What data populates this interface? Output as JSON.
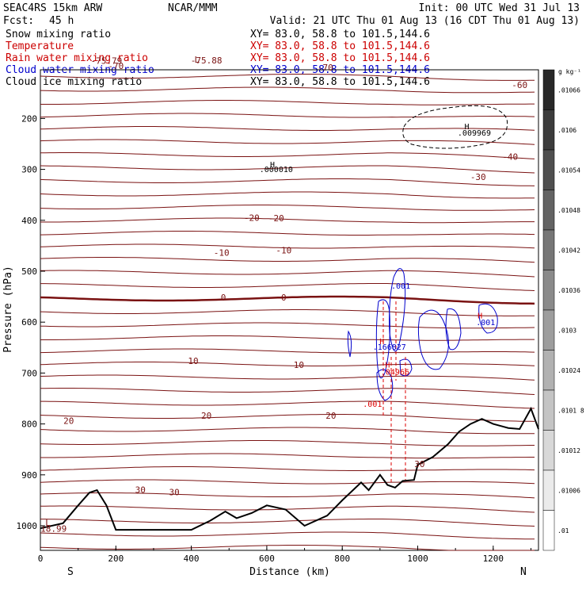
{
  "header": {
    "model": "SEAC4RS 15km ARW",
    "center": "NCAR/MMM",
    "init": "Init: 00 UTC Wed 31 Jul 13",
    "fcst_label": "Fcst:",
    "fcst_value": "45 h",
    "valid": "Valid: 21 UTC Thu 01 Aug 13 (16 CDT Thu 01 Aug 13)"
  },
  "fields": [
    {
      "name": "Snow mixing ratio",
      "xy": "XY=  83.0, 58.8 to 101.5,144.6",
      "color": "#000000"
    },
    {
      "name": "Temperature",
      "xy": "XY=  83.0, 58.8 to 101.5,144.6",
      "color": "#cc0000"
    },
    {
      "name": "Rain water mixing ratio",
      "xy": "XY=  83.0, 58.8 to 101.5,144.6",
      "color": "#cc0000"
    },
    {
      "name": "Cloud water mixing ratio",
      "xy": "XY=  83.0, 58.8 to 101.5,144.6",
      "color": "#0000cc"
    },
    {
      "name": "Cloud ice mixing ratio",
      "xy": "XY=  83.0, 58.8 to 101.5,144.6",
      "color": "#000000"
    }
  ],
  "colors": {
    "temperature": "#7a1212",
    "rain": "#dd0000",
    "cloud_water": "#0000cc",
    "snow": "#000000",
    "terrain": "#000000"
  },
  "chart_data": {
    "type": "contour-cross-section",
    "xlabel": "Distance (km)",
    "ylabel": "Pressure (hPa)",
    "x_range": [
      0,
      1320
    ],
    "y_range": [
      1050,
      100
    ],
    "y_scale": "linear-inverted",
    "x_ticks": [
      0,
      200,
      400,
      600,
      800,
      1000,
      1200
    ],
    "y_ticks": [
      200,
      300,
      400,
      500,
      600,
      700,
      800,
      900,
      1000
    ],
    "x_end_labels": {
      "left": "S",
      "right": "N"
    },
    "temperature_labels": [
      {
        "text": "L",
        "x": 415,
        "p": 90
      },
      {
        "text": "-75.88",
        "x": 440,
        "p": 92
      },
      {
        "text": "-75.79",
        "x": 175,
        "p": 93
      },
      {
        "text": "-70",
        "x": 200,
        "p": 103
      },
      {
        "text": "-70",
        "x": 755,
        "p": 106
      },
      {
        "text": "-60",
        "x": 1270,
        "p": 140
      },
      {
        "text": "-40",
        "x": 1245,
        "p": 281
      },
      {
        "text": "-30",
        "x": 1160,
        "p": 321
      },
      {
        "text": "-20",
        "x": 560,
        "p": 401
      },
      {
        "text": "-20",
        "x": 625,
        "p": 402
      },
      {
        "text": "-10",
        "x": 480,
        "p": 470
      },
      {
        "text": "-10",
        "x": 645,
        "p": 465
      },
      {
        "text": "0",
        "x": 485,
        "p": 558
      },
      {
        "text": "0",
        "x": 645,
        "p": 558
      },
      {
        "text": "10",
        "x": 405,
        "p": 682
      },
      {
        "text": "10",
        "x": 685,
        "p": 690
      },
      {
        "text": "20",
        "x": 75,
        "p": 800
      },
      {
        "text": "20",
        "x": 440,
        "p": 790
      },
      {
        "text": "20",
        "x": 770,
        "p": 790
      },
      {
        "text": "30",
        "x": 265,
        "p": 935
      },
      {
        "text": "30",
        "x": 355,
        "p": 940
      },
      {
        "text": "30",
        "x": 1005,
        "p": 885
      },
      {
        "text": "L",
        "x": 20,
        "p": 1000
      },
      {
        "text": "18.99",
        "x": 35,
        "p": 1012
      }
    ],
    "extrema": [
      {
        "text": "H",
        "x": 615,
        "p": 296,
        "color": "#000000"
      },
      {
        "text": ".000010",
        "x": 625,
        "p": 305,
        "color": "#000000"
      },
      {
        "text": "H",
        "x": 1130,
        "p": 221,
        "color": "#000000"
      },
      {
        "text": ".009969",
        "x": 1150,
        "p": 234,
        "color": "#000000"
      },
      {
        "text": ".001",
        "x": 955,
        "p": 534,
        "color": "#0000cc"
      },
      {
        "text": "H",
        "x": 1165,
        "p": 593,
        "color": "#dd0000"
      },
      {
        "text": ".001",
        "x": 1180,
        "p": 606,
        "color": "#0000cc"
      },
      {
        "text": "H",
        "x": 905,
        "p": 643,
        "color": "#dd0000"
      },
      {
        "text": ".166827",
        "x": 925,
        "p": 654,
        "color": "#0000cc"
      },
      {
        "text": "H",
        "x": 920,
        "p": 689,
        "color": "#dd0000"
      },
      {
        "text": ".04966",
        "x": 940,
        "p": 703,
        "color": "#dd0000"
      },
      {
        "text": ".001",
        "x": 880,
        "p": 766,
        "color": "#dd0000"
      }
    ],
    "colorbar": {
      "unit": "g kg⁻¹",
      "labels": [
        ".01066",
        ".0106",
        ".01054",
        ".01048",
        ".01042",
        ".01036",
        ".0103",
        ".01024",
        ".0101 8",
        ".01012",
        ".01006",
        ".01"
      ]
    },
    "terrain_pressure": [
      [
        0,
        1005
      ],
      [
        60,
        995
      ],
      [
        100,
        960
      ],
      [
        130,
        935
      ],
      [
        150,
        930
      ],
      [
        175,
        960
      ],
      [
        200,
        1008
      ],
      [
        400,
        1008
      ],
      [
        450,
        990
      ],
      [
        490,
        972
      ],
      [
        520,
        985
      ],
      [
        560,
        975
      ],
      [
        600,
        960
      ],
      [
        650,
        968
      ],
      [
        700,
        1000
      ],
      [
        760,
        980
      ],
      [
        800,
        950
      ],
      [
        850,
        915
      ],
      [
        870,
        930
      ],
      [
        900,
        900
      ],
      [
        920,
        920
      ],
      [
        940,
        925
      ],
      [
        960,
        912
      ],
      [
        990,
        910
      ],
      [
        1000,
        880
      ],
      [
        1040,
        865
      ],
      [
        1080,
        840
      ],
      [
        1110,
        815
      ],
      [
        1140,
        800
      ],
      [
        1170,
        790
      ],
      [
        1200,
        800
      ],
      [
        1240,
        808
      ],
      [
        1270,
        810
      ],
      [
        1300,
        770
      ],
      [
        1320,
        810
      ]
    ]
  }
}
